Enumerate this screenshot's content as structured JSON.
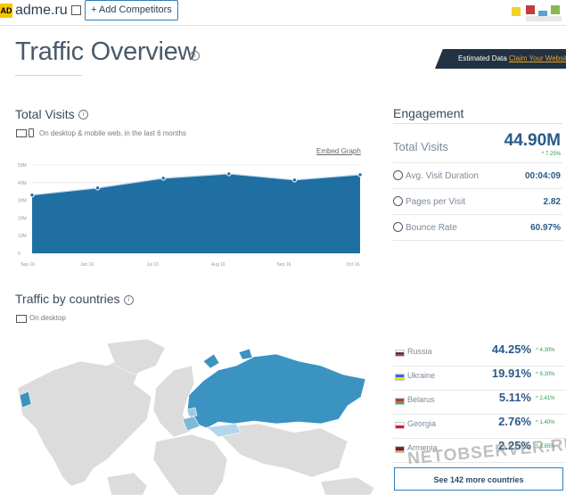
{
  "header": {
    "logo_text": "AD",
    "site": "adme.ru",
    "add_competitors": "+ Add Competitors"
  },
  "page": {
    "title": "Traffic Overview",
    "estimated_label": "Estimated Data",
    "claim_link": "Claim Your Website"
  },
  "total_visits": {
    "title": "Total Visits",
    "subtitle": "On desktop & mobile web, in the last 6 months",
    "embed": "Embed Graph"
  },
  "chart_data": {
    "type": "area",
    "x": [
      "Sep 16",
      "Jan 16",
      "Jul 16",
      "Aug 16",
      "Sep 16",
      "Oct 16"
    ],
    "values": [
      33,
      37,
      42.5,
      45,
      41.5,
      44.5
    ],
    "yticks": [
      "50M",
      "40M",
      "30M",
      "20M",
      "10M",
      "0"
    ],
    "ylim": [
      0,
      50
    ],
    "color": "#1f6fa3"
  },
  "engagement": {
    "title": "Engagement",
    "total_visits_label": "Total Visits",
    "total_visits_value": "44.90M",
    "total_visits_change": "7.25%",
    "rows": [
      {
        "label": "Avg. Visit Duration",
        "value": "00:04:09",
        "icon": "clock-icon"
      },
      {
        "label": "Pages per Visit",
        "value": "2.82",
        "icon": "pages-icon"
      },
      {
        "label": "Bounce Rate",
        "value": "60.97%",
        "icon": "bounce-arrow-icon"
      }
    ]
  },
  "countries": {
    "title": "Traffic by countries",
    "subtitle": "On desktop",
    "rows": [
      {
        "name": "Russia",
        "pct": "44.25%",
        "change": "4.30%",
        "flag": [
          "#ffffff",
          "#1c3f9a",
          "#d52b1e"
        ]
      },
      {
        "name": "Ukraine",
        "pct": "19.91%",
        "change": "9.30%",
        "flag": [
          "#2d6ec8",
          "#f7d618"
        ]
      },
      {
        "name": "Belarus",
        "pct": "5.11%",
        "change": "2.41%",
        "flag": [
          "#c8313e",
          "#4aa657"
        ]
      },
      {
        "name": "Georgia",
        "pct": "2.76%",
        "change": "1.40%",
        "flag": [
          "#ffffff",
          "#e8112d"
        ]
      },
      {
        "name": "Armenia",
        "pct": "2.25%",
        "change": "1.85%",
        "flag": [
          "#d90012",
          "#0033a0",
          "#f2a800"
        ]
      }
    ],
    "see_more": "See 142 more countries"
  },
  "watermark": "NETOBSERVER.RU"
}
